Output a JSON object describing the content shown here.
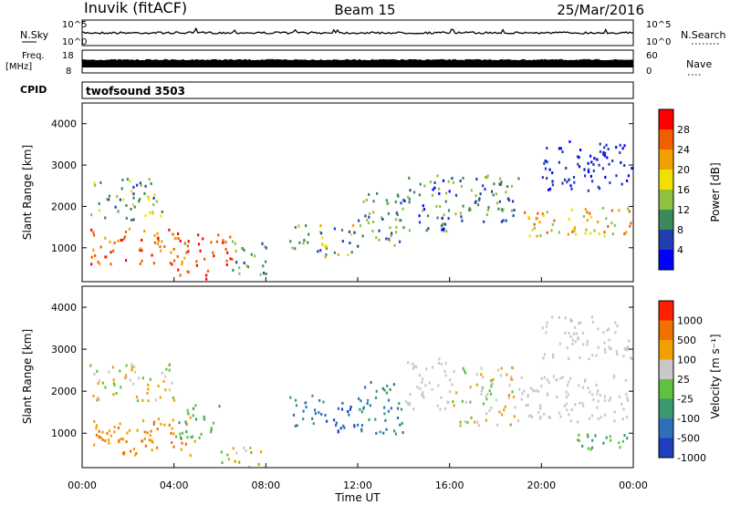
{
  "header": {
    "station": "Inuvik (fitACF)",
    "beam": "Beam 15",
    "date": "25/Mar/2016"
  },
  "cpid": {
    "label": "CPID",
    "value": "twofsound 3503"
  },
  "chart_data": [
    {
      "id": "nsky",
      "type": "line",
      "left_label": "N.Sky",
      "right_label": "N.Search",
      "left_ticks": [
        "10^5",
        "10^0"
      ],
      "right_ticks": [
        "10^5",
        "10^0"
      ]
    },
    {
      "id": "freq",
      "type": "line",
      "left_label_1": "Freq.",
      "left_label_2": "[MHz]",
      "right_label": "Nave",
      "left_ticks": [
        "18",
        "8"
      ],
      "right_ticks": [
        "60",
        "0"
      ]
    },
    {
      "id": "power",
      "type": "heatmap",
      "ylabel": "Slant Range [km]",
      "ylim": [
        180,
        4500
      ],
      "yticks": [
        1000,
        2000,
        3000,
        4000
      ],
      "colorbar_label": "Power [dB]",
      "colorbar_ticks": [
        "28",
        "24",
        "20",
        "16",
        "12",
        "8",
        "4"
      ],
      "colors": [
        "#0000ff",
        "#2040b0",
        "#3a8a5a",
        "#90c040",
        "#f0e000",
        "#f0a000",
        "#f06000",
        "#ff0000"
      ]
    },
    {
      "id": "velocity",
      "type": "heatmap",
      "ylabel": "Slant Range [km]",
      "ylim": [
        180,
        4500
      ],
      "yticks": [
        1000,
        2000,
        3000,
        4000
      ],
      "colorbar_label": "Velocity [m s⁻¹]",
      "colorbar_ticks": [
        "1000",
        "500",
        "100",
        "25",
        "-25",
        "-100",
        "-500",
        "-1000"
      ],
      "colors": [
        "#1e40c0",
        "#2e70b8",
        "#3a9a70",
        "#60c040",
        "#c8c8c8",
        "#f0a000",
        "#f07000",
        "#ff2000"
      ]
    }
  ],
  "xaxis": {
    "label": "Time UT",
    "ticks": [
      "00:00",
      "04:00",
      "08:00",
      "12:00",
      "16:00",
      "20:00",
      "00:00"
    ]
  }
}
